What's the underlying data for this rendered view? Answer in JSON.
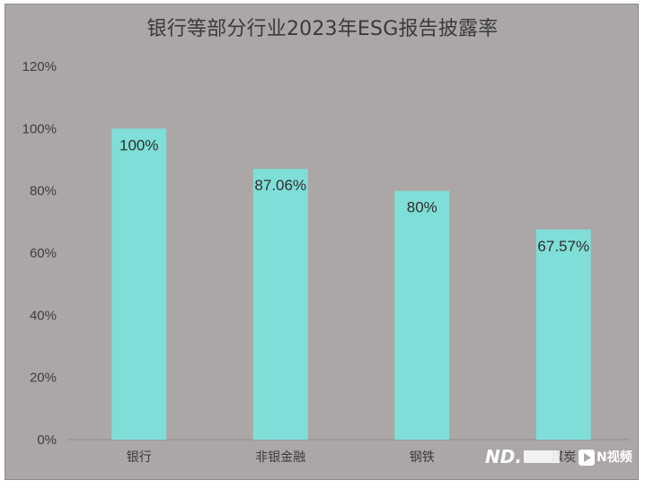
{
  "chart_data": {
    "type": "bar",
    "title": "银行等部分行业2023年ESG报告披露率",
    "categories": [
      "银行",
      "非银金融",
      "钢铁",
      "煤炭"
    ],
    "values": [
      100,
      87.06,
      80,
      67.57
    ],
    "data_labels": [
      "100%",
      "87.06%",
      "80%",
      "67.57%"
    ],
    "ylim": [
      0,
      120
    ],
    "y_ticks": [
      0,
      20,
      40,
      60,
      80,
      100,
      120
    ],
    "y_tick_labels": [
      "0%",
      "20%",
      "40%",
      "60%",
      "80%",
      "100%",
      "120%"
    ],
    "xlabel": "",
    "ylabel": "",
    "grid": false,
    "legend": "none",
    "colors": {
      "bar": "#7fded7",
      "background": "#aba7a6"
    }
  }
}
